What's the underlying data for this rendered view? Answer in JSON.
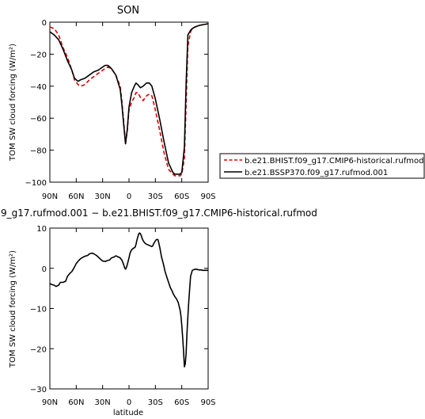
{
  "chart_data": [
    {
      "type": "line",
      "title": "SON",
      "xlabel": "",
      "ylabel": "TOM SW cloud forcing (W/m²)",
      "xlim": [
        -90,
        90
      ],
      "ylim": [
        -100,
        0
      ],
      "x_ticks": [
        -90,
        -60,
        -30,
        0,
        30,
        60,
        90
      ],
      "x_tick_labels": [
        "90N",
        "60N",
        "30N",
        "0",
        "30S",
        "60S",
        "90S"
      ],
      "y_ticks": [
        0,
        -20,
        -40,
        -60,
        -80,
        -100
      ],
      "y_tick_labels": [
        "0",
        "−20",
        "−40",
        "−60",
        "−80",
        "−100"
      ],
      "legend_position": "right",
      "series": [
        {
          "name": "b.e21.BHIST.f09_g17.CMIP6-historical.rufmod",
          "color": "#e00000",
          "dash": "dashed",
          "x": [
            -90,
            -85,
            -80,
            -75,
            -70,
            -65,
            -62,
            -58,
            -55,
            -50,
            -45,
            -40,
            -35,
            -30,
            -27,
            -24,
            -20,
            -15,
            -10,
            -8,
            -6,
            -4,
            -2,
            0,
            3,
            6,
            8,
            10,
            13,
            16,
            20,
            23,
            26,
            30,
            35,
            40,
            45,
            50,
            52,
            55,
            58,
            60,
            63,
            65,
            67,
            70,
            72,
            75,
            80,
            85,
            90
          ],
          "y": [
            -3,
            -4,
            -8,
            -16,
            -22,
            -30,
            -36,
            -39,
            -40,
            -39,
            -36,
            -34,
            -32,
            -30,
            -29,
            -28,
            -29,
            -33,
            -40,
            -50,
            -62,
            -76,
            -68,
            -55,
            -50,
            -47,
            -44,
            -44,
            -47,
            -49,
            -46,
            -45,
            -46,
            -55,
            -68,
            -82,
            -92,
            -95,
            -96,
            -96,
            -96,
            -95,
            -85,
            -50,
            -15,
            -6,
            -4,
            -3,
            -2,
            -1.5,
            -1
          ]
        },
        {
          "name": "b.e21.BSSP370.f09_g17.rufmod.001",
          "color": "#000000",
          "dash": "solid",
          "x": [
            -90,
            -85,
            -80,
            -75,
            -70,
            -65,
            -62,
            -58,
            -55,
            -50,
            -45,
            -40,
            -35,
            -30,
            -27,
            -24,
            -20,
            -15,
            -10,
            -8,
            -6,
            -4,
            -2,
            0,
            3,
            6,
            8,
            10,
            13,
            16,
            20,
            23,
            26,
            30,
            35,
            40,
            45,
            50,
            52,
            55,
            58,
            60,
            63,
            65,
            67,
            70,
            72,
            75,
            80,
            85,
            90
          ],
          "y": [
            -6,
            -8,
            -11,
            -17,
            -24,
            -30,
            -35,
            -37,
            -36,
            -35,
            -33,
            -31,
            -30,
            -28,
            -27,
            -27,
            -29,
            -33,
            -42,
            -52,
            -64,
            -76,
            -67,
            -53,
            -44,
            -40,
            -38,
            -39,
            -41,
            -40,
            -38,
            -38,
            -40,
            -48,
            -61,
            -75,
            -88,
            -94,
            -95,
            -95,
            -95,
            -94,
            -78,
            -38,
            -8,
            -5,
            -4,
            -3,
            -2,
            -1.5,
            -1
          ]
        }
      ]
    },
    {
      "type": "line",
      "title": "9_g17.rufmod.001 − b.e21.BHIST.f09_g17.CMIP6-historical.rufmod",
      "xlabel": "latitude",
      "ylabel": "TOM SW cloud forcing (W/m²)",
      "xlim": [
        -90,
        90
      ],
      "ylim": [
        -30,
        10
      ],
      "x_ticks": [
        -90,
        -60,
        -30,
        0,
        30,
        60,
        90
      ],
      "x_tick_labels": [
        "90N",
        "60N",
        "30N",
        "0",
        "30S",
        "60S",
        "90S"
      ],
      "y_ticks": [
        10,
        0,
        -10,
        -20,
        -30
      ],
      "y_tick_labels": [
        "10",
        "0",
        "−10",
        "−20",
        "−30"
      ],
      "series": [
        {
          "name": "",
          "color": "#000000",
          "dash": "solid",
          "x": [
            -90,
            -88,
            -85,
            -83,
            -80,
            -78,
            -75,
            -72,
            -70,
            -67,
            -65,
            -62,
            -60,
            -57,
            -55,
            -52,
            -50,
            -47,
            -45,
            -42,
            -40,
            -37,
            -35,
            -32,
            -30,
            -27,
            -25,
            -22,
            -20,
            -17,
            -15,
            -12,
            -10,
            -8,
            -6,
            -5,
            -4,
            -3,
            -2,
            0,
            1,
            2,
            3,
            5,
            6,
            7,
            8,
            9,
            10,
            11,
            12,
            13,
            14,
            15,
            16,
            17,
            18,
            19,
            20,
            22,
            24,
            25,
            26,
            27,
            28,
            29,
            30,
            31,
            32,
            33,
            35,
            37,
            39,
            41,
            43,
            45,
            47,
            49,
            50,
            52,
            54,
            56,
            57,
            58,
            59,
            60,
            61,
            62,
            63,
            64,
            65,
            66,
            67,
            68,
            69,
            70,
            72,
            74,
            76,
            78,
            80,
            82,
            84,
            86,
            88,
            90
          ],
          "y": [
            -3.8,
            -4,
            -4.2,
            -4.5,
            -4.2,
            -3.5,
            -3.5,
            -3.2,
            -2,
            -1.2,
            -0.8,
            0.3,
            1.2,
            2,
            2.4,
            2.8,
            3,
            3.2,
            3.6,
            3.8,
            3.6,
            3.2,
            2.8,
            2.2,
            1.8,
            1.7,
            1.9,
            2.1,
            2.6,
            2.8,
            3.1,
            2.8,
            2.6,
            2,
            0.9,
            0.2,
            -0.2,
            0.2,
            0.9,
            2.6,
            3.6,
            4.2,
            4.6,
            5,
            5.1,
            5.3,
            6,
            7,
            7.8,
            8.5,
            8.8,
            8.6,
            8.1,
            7.4,
            6.9,
            6.6,
            6.3,
            6.1,
            6,
            5.8,
            5.6,
            5.5,
            5.4,
            5.6,
            6.1,
            6.5,
            6.8,
            7.1,
            7.2,
            7.1,
            5.2,
            2.8,
            1.2,
            -0.8,
            -2.2,
            -3.5,
            -4.8,
            -5.6,
            -6.2,
            -7,
            -7.6,
            -8.5,
            -9.4,
            -10.2,
            -11.8,
            -14.2,
            -17.2,
            -20.5,
            -24.5,
            -23.8,
            -21,
            -16,
            -12,
            -8,
            -5,
            -2,
            -0.5,
            -0.3,
            -0.2,
            -0.3,
            -0.4,
            -0.4,
            -0.5,
            -0.5,
            -0.5,
            -0.5
          ]
        }
      ]
    }
  ]
}
